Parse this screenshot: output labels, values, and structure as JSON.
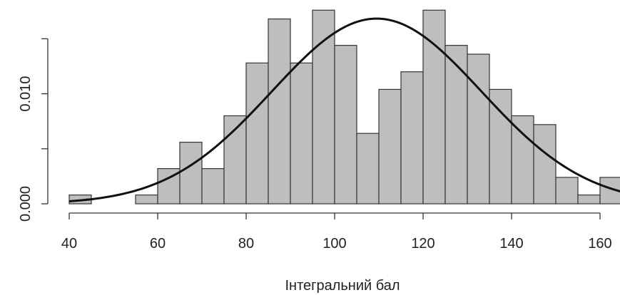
{
  "chart_data": {
    "type": "bar",
    "histogram": true,
    "bin_width": 5,
    "bins": [
      {
        "x0": 40,
        "x1": 45,
        "density": 0.0008
      },
      {
        "x0": 45,
        "x1": 50,
        "density": 0.0
      },
      {
        "x0": 50,
        "x1": 55,
        "density": 0.0
      },
      {
        "x0": 55,
        "x1": 60,
        "density": 0.0008
      },
      {
        "x0": 60,
        "x1": 65,
        "density": 0.0032
      },
      {
        "x0": 65,
        "x1": 70,
        "density": 0.0056
      },
      {
        "x0": 70,
        "x1": 75,
        "density": 0.0032
      },
      {
        "x0": 75,
        "x1": 80,
        "density": 0.008
      },
      {
        "x0": 80,
        "x1": 85,
        "density": 0.0128
      },
      {
        "x0": 85,
        "x1": 90,
        "density": 0.0168
      },
      {
        "x0": 90,
        "x1": 95,
        "density": 0.0128
      },
      {
        "x0": 95,
        "x1": 100,
        "density": 0.0176
      },
      {
        "x0": 100,
        "x1": 105,
        "density": 0.0144
      },
      {
        "x0": 105,
        "x1": 110,
        "density": 0.0064
      },
      {
        "x0": 110,
        "x1": 115,
        "density": 0.0104
      },
      {
        "x0": 115,
        "x1": 120,
        "density": 0.012
      },
      {
        "x0": 120,
        "x1": 125,
        "density": 0.0176
      },
      {
        "x0": 125,
        "x1": 130,
        "density": 0.0144
      },
      {
        "x0": 130,
        "x1": 135,
        "density": 0.0136
      },
      {
        "x0": 135,
        "x1": 140,
        "density": 0.0104
      },
      {
        "x0": 140,
        "x1": 145,
        "density": 0.008
      },
      {
        "x0": 145,
        "x1": 150,
        "density": 0.0072
      },
      {
        "x0": 150,
        "x1": 155,
        "density": 0.0024
      },
      {
        "x0": 155,
        "x1": 160,
        "density": 0.0008
      },
      {
        "x0": 160,
        "x1": 165,
        "density": 0.0024
      }
    ],
    "normal_curve": {
      "mean": 109.5,
      "sd": 23.7
    },
    "title": "",
    "xlabel": "Інтегральний бал",
    "ylabel": "",
    "xlim": [
      40,
      165
    ],
    "ylim": [
      0,
      0.0176
    ],
    "x_ticks": [
      40,
      60,
      80,
      100,
      120,
      140,
      160
    ],
    "x_tick_labels": [
      "40",
      "60",
      "80",
      "100",
      "120",
      "140",
      "160"
    ],
    "y_ticks": [
      0.0,
      0.005,
      0.01,
      0.015
    ],
    "y_tick_labels": [
      "0.000",
      "",
      "0.010",
      ""
    ],
    "grid": false,
    "colors": {
      "bar_fill": "#bebebe",
      "bar_stroke": "#333333",
      "curve": "#111111"
    }
  }
}
